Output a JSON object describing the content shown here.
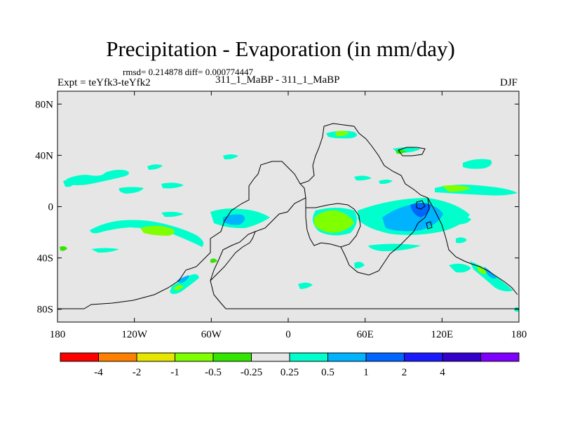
{
  "title": "Precipitation - Evaporation (in mm/day)",
  "stats_line": "rmsd= 0.214878 diff= 0.000774447",
  "left_label": "Expt = teYfk3-teYfk2",
  "center_label": "311_1_MaBP - 311_1_MaBP",
  "right_label": "DJF",
  "map": {
    "projection": "cylindrical-equidistant",
    "lon_range": [
      -180,
      180
    ],
    "lat_range": [
      -90,
      90
    ],
    "background_color": "#e6e6e6",
    "x_tick_labels": [
      "180",
      "120W",
      "60W",
      "0",
      "60E",
      "120E",
      "180"
    ],
    "y_tick_labels": [
      "80N",
      "40N",
      "0",
      "40S",
      "80S"
    ]
  },
  "colorbar": {
    "colors": [
      "#ff0000",
      "#ff8000",
      "#e6e600",
      "#80ff00",
      "#33e600",
      "#e6e6e6",
      "#00ffcc",
      "#00b3ff",
      "#0066ff",
      "#1a1aff",
      "#3300cc",
      "#8000ff"
    ],
    "labels": [
      "-4",
      "-2",
      "-1",
      "-0.5",
      "-0.25",
      "0.25",
      "0.5",
      "1",
      "2",
      "4"
    ]
  }
}
